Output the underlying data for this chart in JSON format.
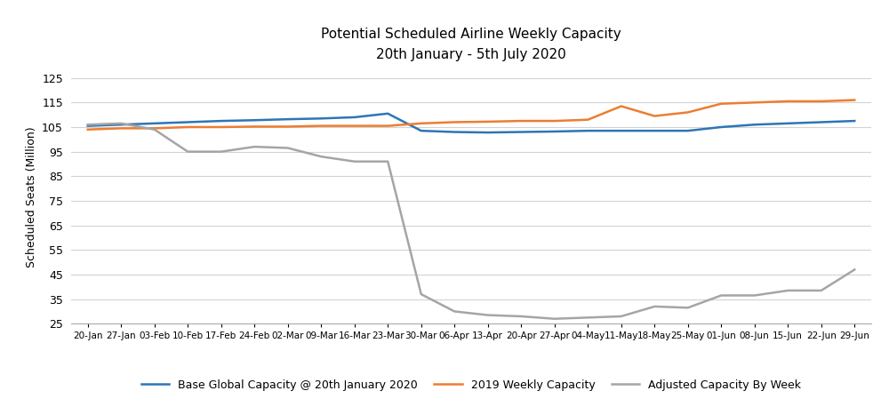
{
  "title_line1": "Potential Scheduled Airline Weekly Capacity",
  "title_line2": "20th January - 5th July 2020",
  "ylabel": "Scheduled Seats (Million)",
  "ylim": [
    25,
    128
  ],
  "yticks": [
    25,
    35,
    45,
    55,
    65,
    75,
    85,
    95,
    105,
    115,
    125
  ],
  "x_labels": [
    "20-Jan",
    "27-Jan",
    "03-Feb",
    "10-Feb",
    "17-Feb",
    "24-Feb",
    "02-Mar",
    "09-Mar",
    "16-Mar",
    "23-Mar",
    "30-Mar",
    "06-Apr",
    "13-Apr",
    "20-Apr",
    "27-Apr",
    "04-May",
    "11-May",
    "18-May",
    "25-May",
    "01-Jun",
    "08-Jun",
    "15-Jun",
    "22-Jun",
    "29-Jun"
  ],
  "base_capacity": [
    105.5,
    106.0,
    106.5,
    107.0,
    107.5,
    107.8,
    108.2,
    108.5,
    109.0,
    110.5,
    103.5,
    103.0,
    102.8,
    103.0,
    103.2,
    103.5,
    103.5,
    103.5,
    103.5,
    105.0,
    106.0,
    106.5,
    107.0,
    107.5
  ],
  "capacity_2019": [
    104.0,
    104.5,
    104.5,
    105.0,
    105.0,
    105.2,
    105.2,
    105.5,
    105.5,
    105.5,
    106.5,
    107.0,
    107.2,
    107.5,
    107.5,
    108.0,
    113.5,
    109.5,
    111.0,
    114.5,
    115.0,
    115.5,
    115.5,
    116.0
  ],
  "adjusted_capacity": [
    106.0,
    106.5,
    104.0,
    95.0,
    95.0,
    97.0,
    96.5,
    93.0,
    91.0,
    91.0,
    37.0,
    30.0,
    28.5,
    28.0,
    27.0,
    27.5,
    28.0,
    32.0,
    31.5,
    36.5,
    36.5,
    38.5,
    38.5,
    47.0
  ],
  "color_base": "#2E75B6",
  "color_2019": "#ED7D31",
  "color_adjusted": "#A5A5A5",
  "legend_labels": [
    "Base Global Capacity @ 20th January 2020",
    "2019 Weekly Capacity",
    "Adjusted Capacity By Week"
  ],
  "background_color": "#FFFFFF",
  "grid_color": "#D3D3D3"
}
